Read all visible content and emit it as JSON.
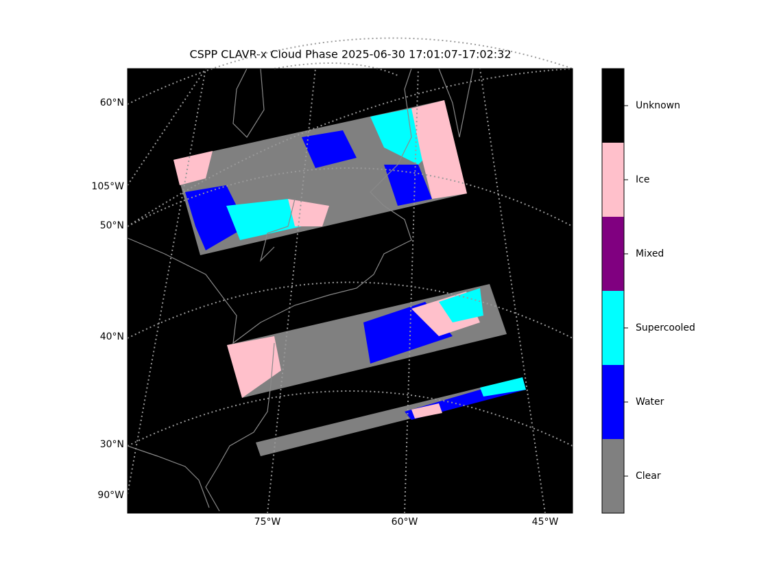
{
  "title": "CSPP CLAVR-x Cloud Phase 2025-06-30 17:01:07-17:02:32",
  "map": {
    "lat_labels": [
      "60°N",
      "50°N",
      "40°N",
      "30°N"
    ],
    "lon_labels_left": [
      "105°W",
      "90°W"
    ],
    "lon_labels_bottom": [
      "75°W",
      "60°W",
      "45°W"
    ]
  },
  "colorbar": {
    "classes": [
      {
        "name": "Unknown",
        "color": "#000000"
      },
      {
        "name": "Ice",
        "color": "#ffc0cb"
      },
      {
        "name": "Mixed",
        "color": "#800080"
      },
      {
        "name": "Supercooled",
        "color": "#00ffff"
      },
      {
        "name": "Water",
        "color": "#0000ff"
      },
      {
        "name": "Clear",
        "color": "#808080"
      }
    ]
  }
}
